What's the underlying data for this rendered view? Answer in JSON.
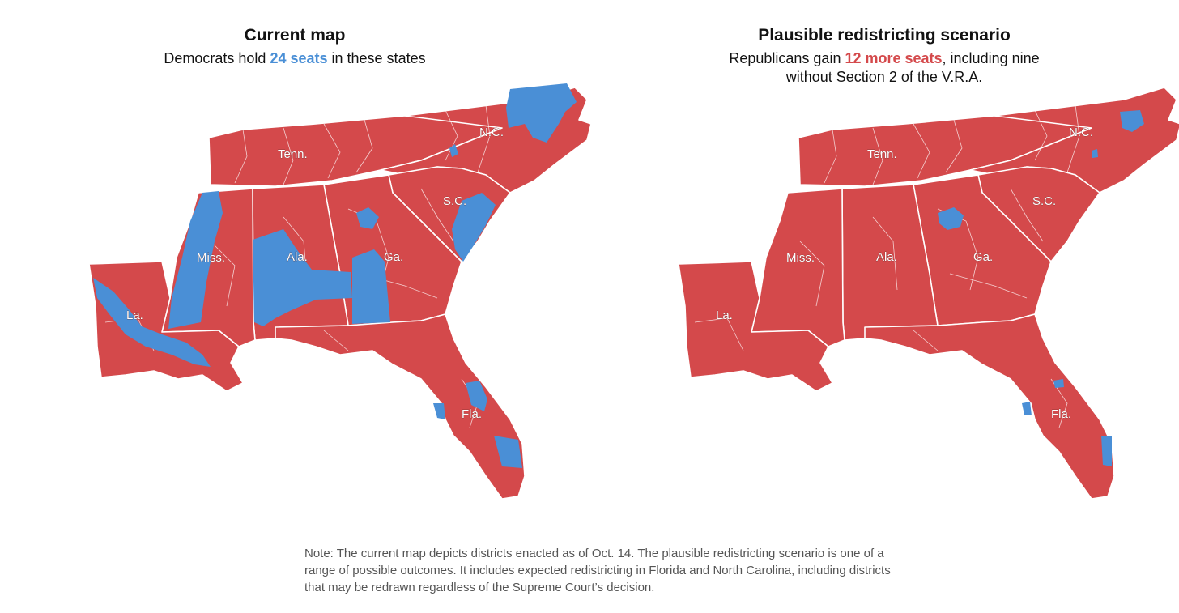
{
  "colors": {
    "republican": "#d4494b",
    "democrat": "#4a8fd6",
    "border": "#ffffff"
  },
  "left": {
    "title": "Current map",
    "subtitle_pre": "Democrats hold ",
    "subtitle_highlight": "24 seats",
    "subtitle_post": " in these states",
    "state_labels": {
      "nc": "N.C.",
      "tn": "Tenn.",
      "sc": "S.C.",
      "ms": "Miss.",
      "al": "Ala.",
      "ga": "Ga.",
      "la": "La.",
      "fl": "Fla."
    }
  },
  "right": {
    "title": "Plausible redistricting scenario",
    "subtitle_pre": "Republicans gain ",
    "subtitle_highlight": "12 more seats",
    "subtitle_post": ", including nine",
    "subtitle_line2": "without Section 2 of the V.R.A.",
    "state_labels": {
      "nc": "N.C.",
      "tn": "Tenn.",
      "sc": "S.C.",
      "ms": "Miss.",
      "al": "Ala.",
      "ga": "Ga.",
      "la": "La.",
      "fl": "Fla."
    }
  },
  "note": "Note: The current map depicts districts enacted as of Oct. 14. The plausible redistricting scenario is one of a range of possible outcomes. It includes expected redistricting in Florida and North Carolina, including districts that may be redrawn regardless of the Supreme Court’s decision."
}
